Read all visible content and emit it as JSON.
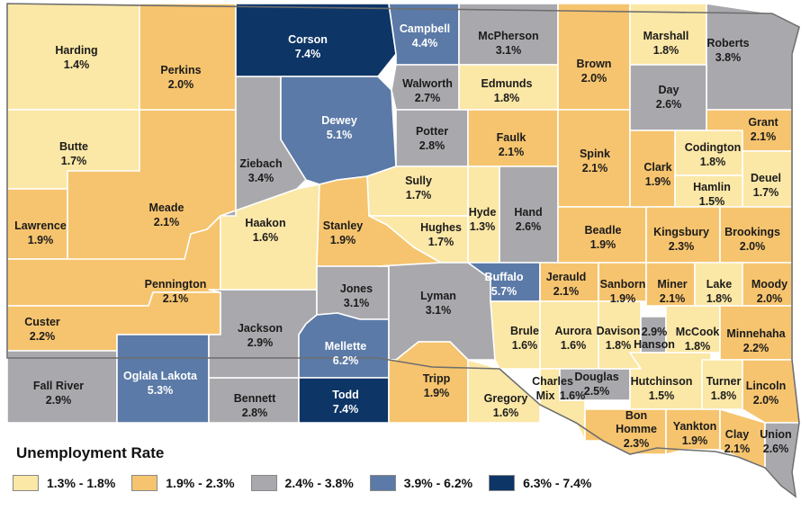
{
  "legend": {
    "title": "Unemployment Rate",
    "items": [
      {
        "label": "1.3% - 1.8%",
        "color": "#fbe7a6"
      },
      {
        "label": "1.9% - 2.3%",
        "color": "#f6c46e"
      },
      {
        "label": "2.4% - 3.8%",
        "color": "#a9a9ad"
      },
      {
        "label": "3.9% - 6.2%",
        "color": "#5b7aa7"
      },
      {
        "label": "6.3% - 7.4%",
        "color": "#0d3566"
      }
    ]
  },
  "counties": [
    {
      "name": "Harding",
      "rate": "1.4%",
      "bin": 0
    },
    {
      "name": "Butte",
      "rate": "1.7%",
      "bin": 0
    },
    {
      "name": "Lawrence",
      "rate": "1.9%",
      "bin": 1
    },
    {
      "name": "Meade",
      "rate": "2.1%",
      "bin": 1
    },
    {
      "name": "Perkins",
      "rate": "2.0%",
      "bin": 1
    },
    {
      "name": "Pennington",
      "rate": "2.1%",
      "bin": 1
    },
    {
      "name": "Custer",
      "rate": "2.2%",
      "bin": 1
    },
    {
      "name": "Fall River",
      "rate": "2.9%",
      "bin": 2
    },
    {
      "name": "Oglala Lakota",
      "rate": "5.3%",
      "bin": 3
    },
    {
      "name": "Bennett",
      "rate": "2.8%",
      "bin": 2
    },
    {
      "name": "Jackson",
      "rate": "2.9%",
      "bin": 2
    },
    {
      "name": "Haakon",
      "rate": "1.6%",
      "bin": 0
    },
    {
      "name": "Ziebach",
      "rate": "3.4%",
      "bin": 2
    },
    {
      "name": "Corson",
      "rate": "7.4%",
      "bin": 4
    },
    {
      "name": "Dewey",
      "rate": "5.1%",
      "bin": 3
    },
    {
      "name": "Campbell",
      "rate": "4.4%",
      "bin": 3
    },
    {
      "name": "Walworth",
      "rate": "2.7%",
      "bin": 2
    },
    {
      "name": "Potter",
      "rate": "2.8%",
      "bin": 2
    },
    {
      "name": "Sully",
      "rate": "1.7%",
      "bin": 0
    },
    {
      "name": "Stanley",
      "rate": "1.9%",
      "bin": 1
    },
    {
      "name": "Hughes",
      "rate": "1.7%",
      "bin": 0
    },
    {
      "name": "Jones",
      "rate": "3.1%",
      "bin": 2
    },
    {
      "name": "Mellette",
      "rate": "6.2%",
      "bin": 3
    },
    {
      "name": "Todd",
      "rate": "7.4%",
      "bin": 4
    },
    {
      "name": "Lyman",
      "rate": "3.1%",
      "bin": 2
    },
    {
      "name": "Tripp",
      "rate": "1.9%",
      "bin": 1
    },
    {
      "name": "Gregory",
      "rate": "1.6%",
      "bin": 0
    },
    {
      "name": "McPherson",
      "rate": "3.1%",
      "bin": 2
    },
    {
      "name": "Edmunds",
      "rate": "1.8%",
      "bin": 0
    },
    {
      "name": "Faulk",
      "rate": "2.1%",
      "bin": 1
    },
    {
      "name": "Hyde",
      "rate": "1.3%",
      "bin": 0
    },
    {
      "name": "Hand",
      "rate": "2.6%",
      "bin": 2
    },
    {
      "name": "Buffalo",
      "rate": "5.7%",
      "bin": 3
    },
    {
      "name": "Brule",
      "rate": "1.6%",
      "bin": 0
    },
    {
      "name": "Jerauld",
      "rate": "2.1%",
      "bin": 1
    },
    {
      "name": "Aurora",
      "rate": "1.6%",
      "bin": 0
    },
    {
      "name": "Charles Mix",
      "rate": "1.6%",
      "bin": 0
    },
    {
      "name": "Douglas",
      "rate": "2.5%",
      "bin": 2
    },
    {
      "name": "Brown",
      "rate": "2.0%",
      "bin": 1
    },
    {
      "name": "Spink",
      "rate": "2.1%",
      "bin": 1
    },
    {
      "name": "Beadle",
      "rate": "1.9%",
      "bin": 1
    },
    {
      "name": "Sanborn",
      "rate": "1.9%",
      "bin": 1
    },
    {
      "name": "Davison",
      "rate": "1.8%",
      "bin": 0
    },
    {
      "name": "Hanson",
      "rate": "2.9%",
      "bin": 2
    },
    {
      "name": "Hutchinson",
      "rate": "1.5%",
      "bin": 0
    },
    {
      "name": "Bon Homme",
      "rate": "2.3%",
      "bin": 1
    },
    {
      "name": "Yankton",
      "rate": "1.9%",
      "bin": 1
    },
    {
      "name": "Marshall",
      "rate": "1.8%",
      "bin": 0
    },
    {
      "name": "Roberts",
      "rate": "3.8%",
      "bin": 2
    },
    {
      "name": "Day",
      "rate": "2.6%",
      "bin": 2
    },
    {
      "name": "Grant",
      "rate": "2.1%",
      "bin": 1
    },
    {
      "name": "Codington",
      "rate": "1.8%",
      "bin": 0
    },
    {
      "name": "Clark",
      "rate": "1.9%",
      "bin": 1
    },
    {
      "name": "Deuel",
      "rate": "1.7%",
      "bin": 0
    },
    {
      "name": "Hamlin",
      "rate": "1.5%",
      "bin": 0
    },
    {
      "name": "Kingsbury",
      "rate": "2.3%",
      "bin": 1
    },
    {
      "name": "Brookings",
      "rate": "2.0%",
      "bin": 1
    },
    {
      "name": "Miner",
      "rate": "2.1%",
      "bin": 1
    },
    {
      "name": "Lake",
      "rate": "1.8%",
      "bin": 0
    },
    {
      "name": "Moody",
      "rate": "2.0%",
      "bin": 1
    },
    {
      "name": "McCook",
      "rate": "1.8%",
      "bin": 0
    },
    {
      "name": "Minnehaha",
      "rate": "2.2%",
      "bin": 1
    },
    {
      "name": "Turner",
      "rate": "1.8%",
      "bin": 0
    },
    {
      "name": "Lincoln",
      "rate": "2.0%",
      "bin": 1
    },
    {
      "name": "Clay",
      "rate": "2.1%",
      "bin": 1
    },
    {
      "name": "Union",
      "rate": "2.6%",
      "bin": 2
    }
  ]
}
